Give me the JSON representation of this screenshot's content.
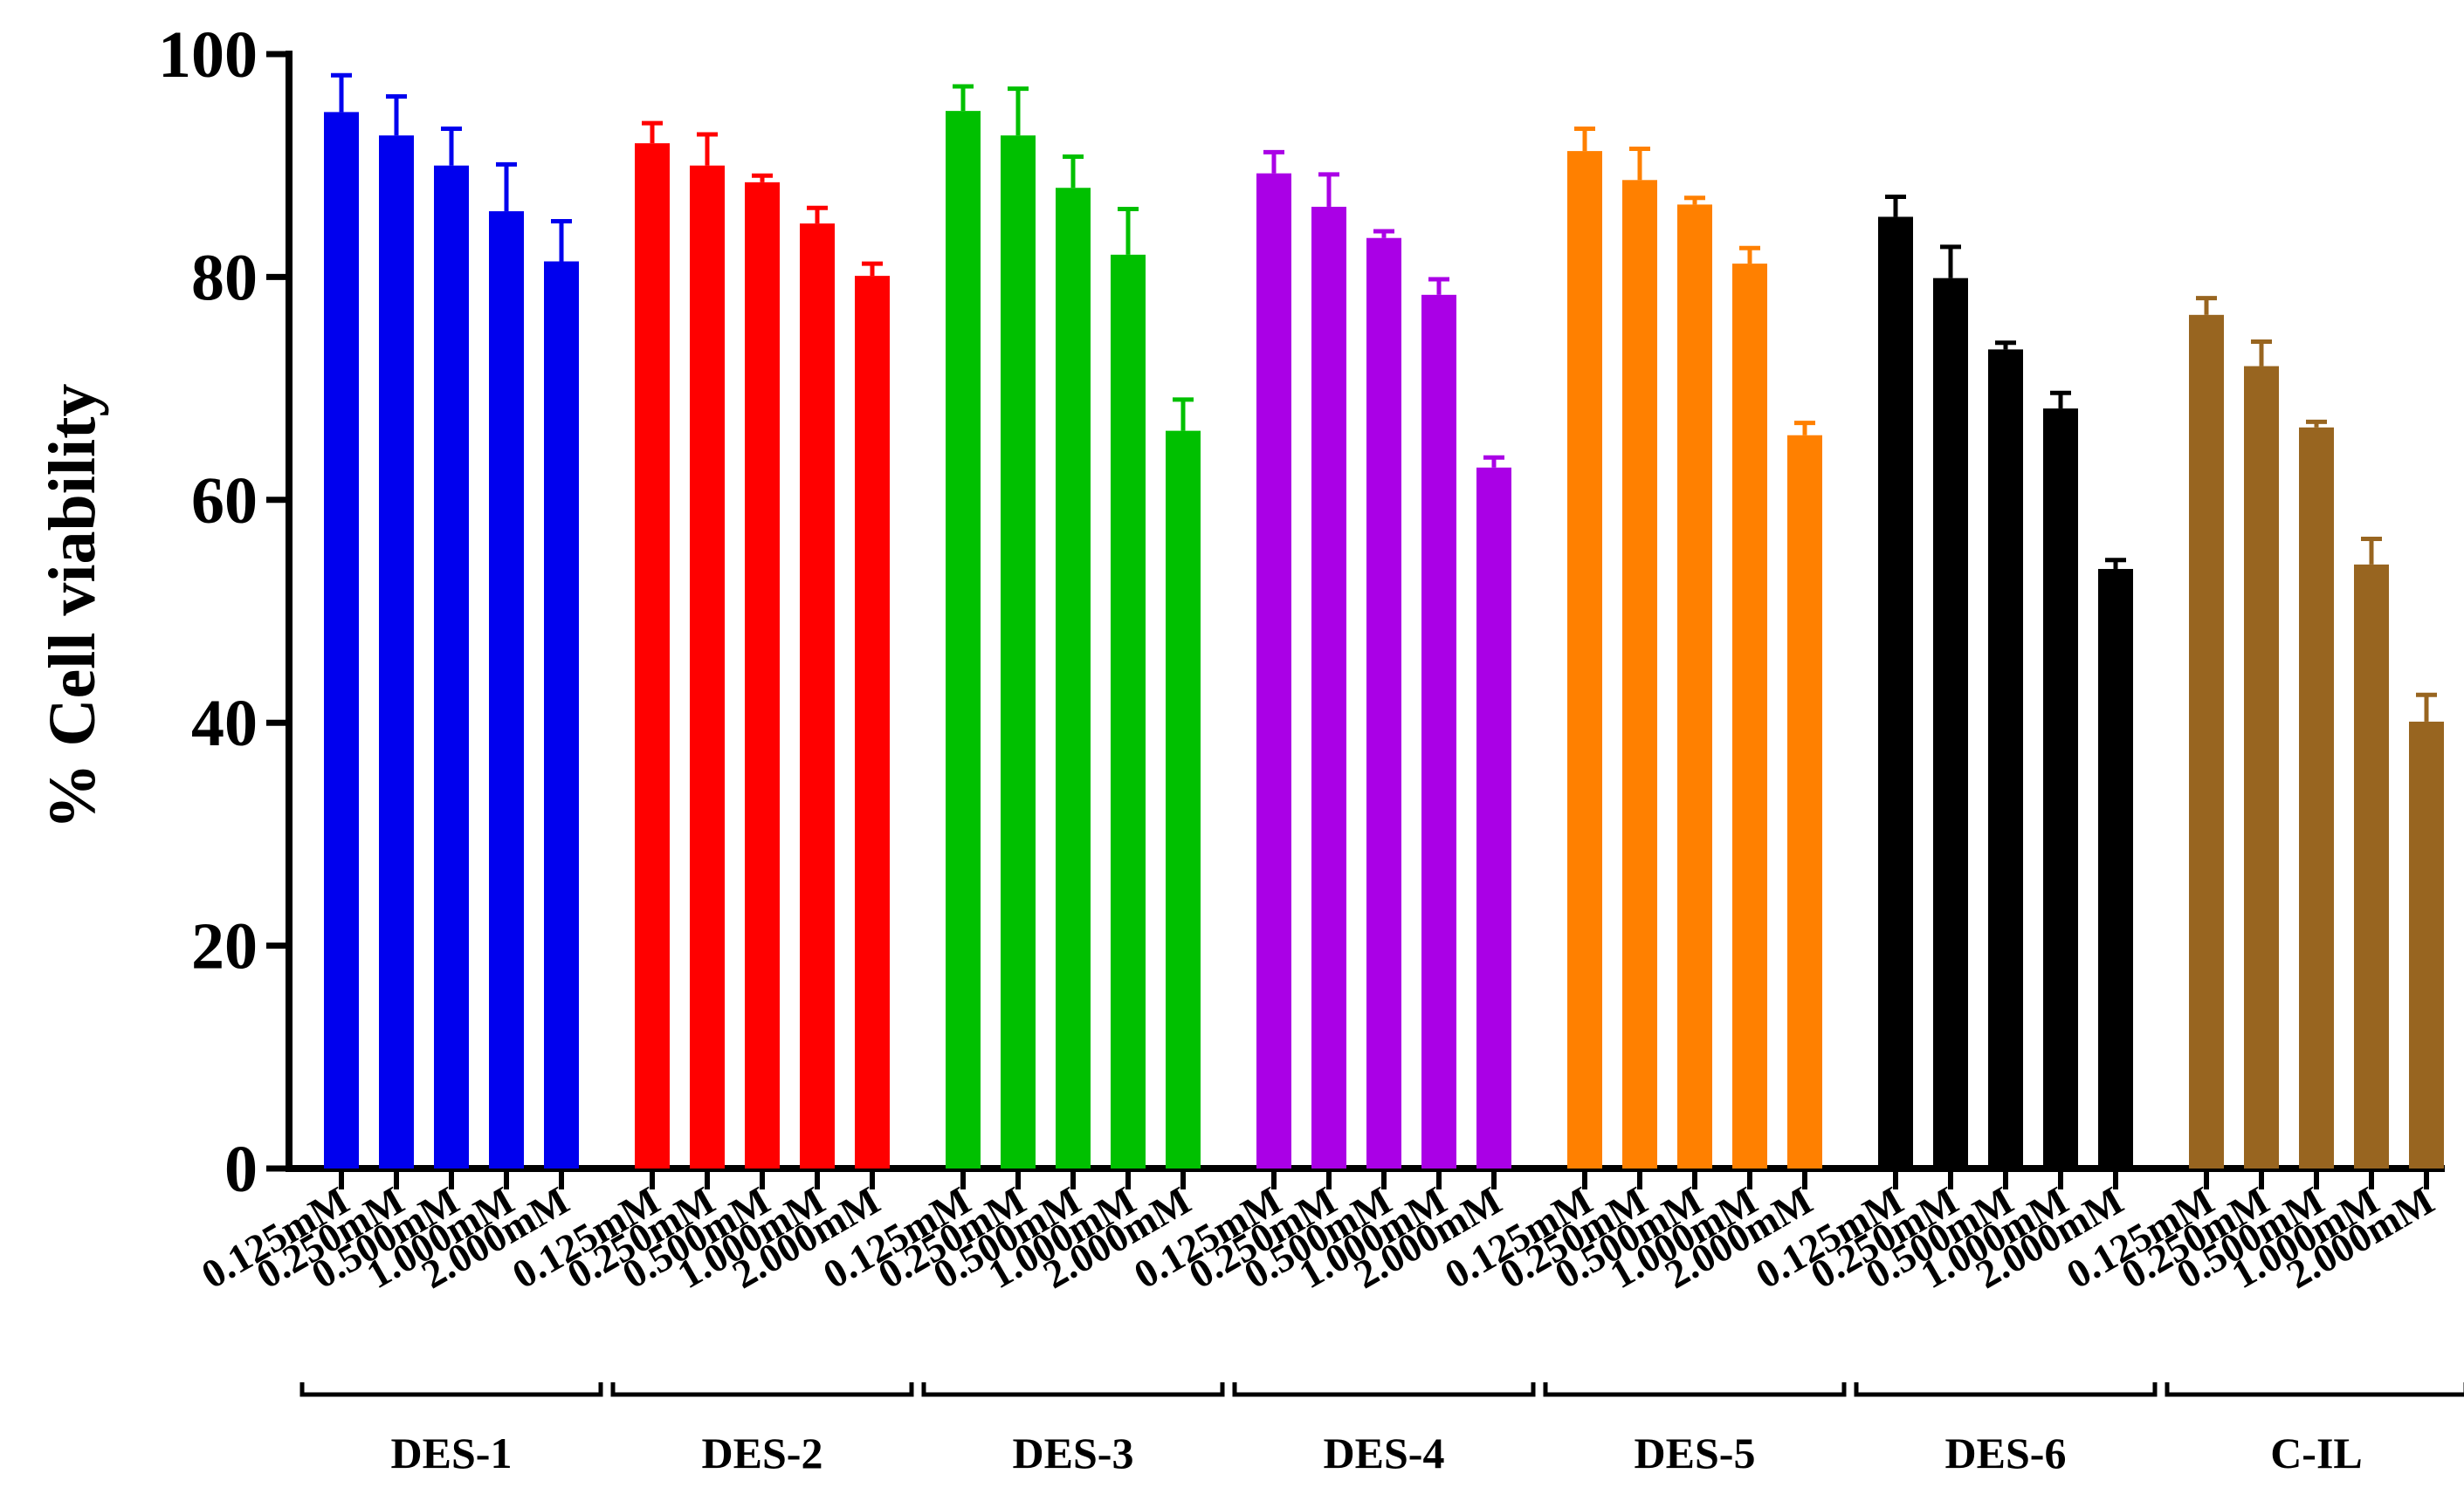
{
  "chart_data": {
    "type": "bar",
    "title": "",
    "xlabel": "",
    "ylabel": "% Cell viability",
    "ylim": [
      0,
      100
    ],
    "yticks": [
      0,
      20,
      40,
      60,
      80,
      100
    ],
    "grid": false,
    "legend": "none",
    "categories": [
      "0.125mM",
      "0.250mM",
      "0.500mM",
      "1.000mM",
      "2.000mM"
    ],
    "series": [
      {
        "name": "DES-1",
        "color": "#0000ee",
        "values": [
          94.8,
          92.7,
          90.0,
          85.9,
          81.4
        ],
        "errors": [
          3.3,
          3.5,
          3.3,
          4.2,
          3.6
        ]
      },
      {
        "name": "DES-2",
        "color": "#ff0000",
        "values": [
          92.0,
          90.0,
          88.5,
          84.8,
          80.1
        ],
        "errors": [
          1.8,
          2.8,
          0.6,
          1.4,
          1.1
        ]
      },
      {
        "name": "DES-3",
        "color": "#00c000",
        "values": [
          94.9,
          92.7,
          88.0,
          82.0,
          66.2
        ],
        "errors": [
          2.2,
          4.2,
          2.8,
          4.1,
          2.8
        ]
      },
      {
        "name": "DES-4",
        "color": "#aa00e6",
        "values": [
          89.3,
          86.3,
          83.5,
          78.4,
          62.9
        ],
        "errors": [
          1.9,
          2.9,
          0.6,
          1.4,
          0.9
        ]
      },
      {
        "name": "DES-5",
        "color": "#ff8000",
        "values": [
          91.3,
          88.7,
          86.5,
          81.2,
          65.8
        ],
        "errors": [
          2.0,
          2.8,
          0.6,
          1.4,
          1.1
        ]
      },
      {
        "name": "DES-6",
        "color": "#000000",
        "values": [
          85.4,
          79.9,
          73.5,
          68.2,
          53.8
        ],
        "errors": [
          1.8,
          2.8,
          0.6,
          1.4,
          0.8
        ]
      },
      {
        "name": "C-IL",
        "color": "#986520",
        "values": [
          76.6,
          72.0,
          66.5,
          54.2,
          40.1
        ],
        "errors": [
          1.5,
          2.2,
          0.5,
          2.3,
          2.4
        ]
      }
    ]
  }
}
